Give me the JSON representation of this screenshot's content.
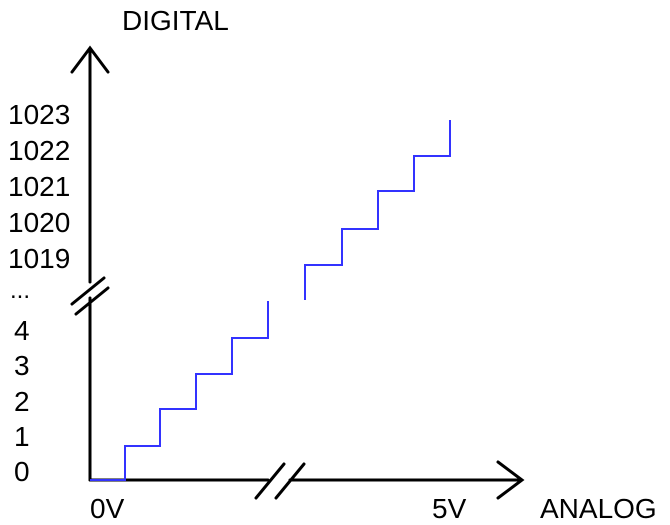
{
  "labels": {
    "y_axis_title": "DIGITAL",
    "x_axis_title": "ANALOG",
    "x_tick_start": "0V",
    "x_tick_end": "5V",
    "ellipsis": "...",
    "y_ticks_low": [
      "0",
      "1",
      "2",
      "3",
      "4"
    ],
    "y_ticks_high": [
      "1019",
      "1020",
      "1021",
      "1022",
      "1023"
    ]
  },
  "colors": {
    "axis": "#000000",
    "staircase": "#3333ff"
  }
}
